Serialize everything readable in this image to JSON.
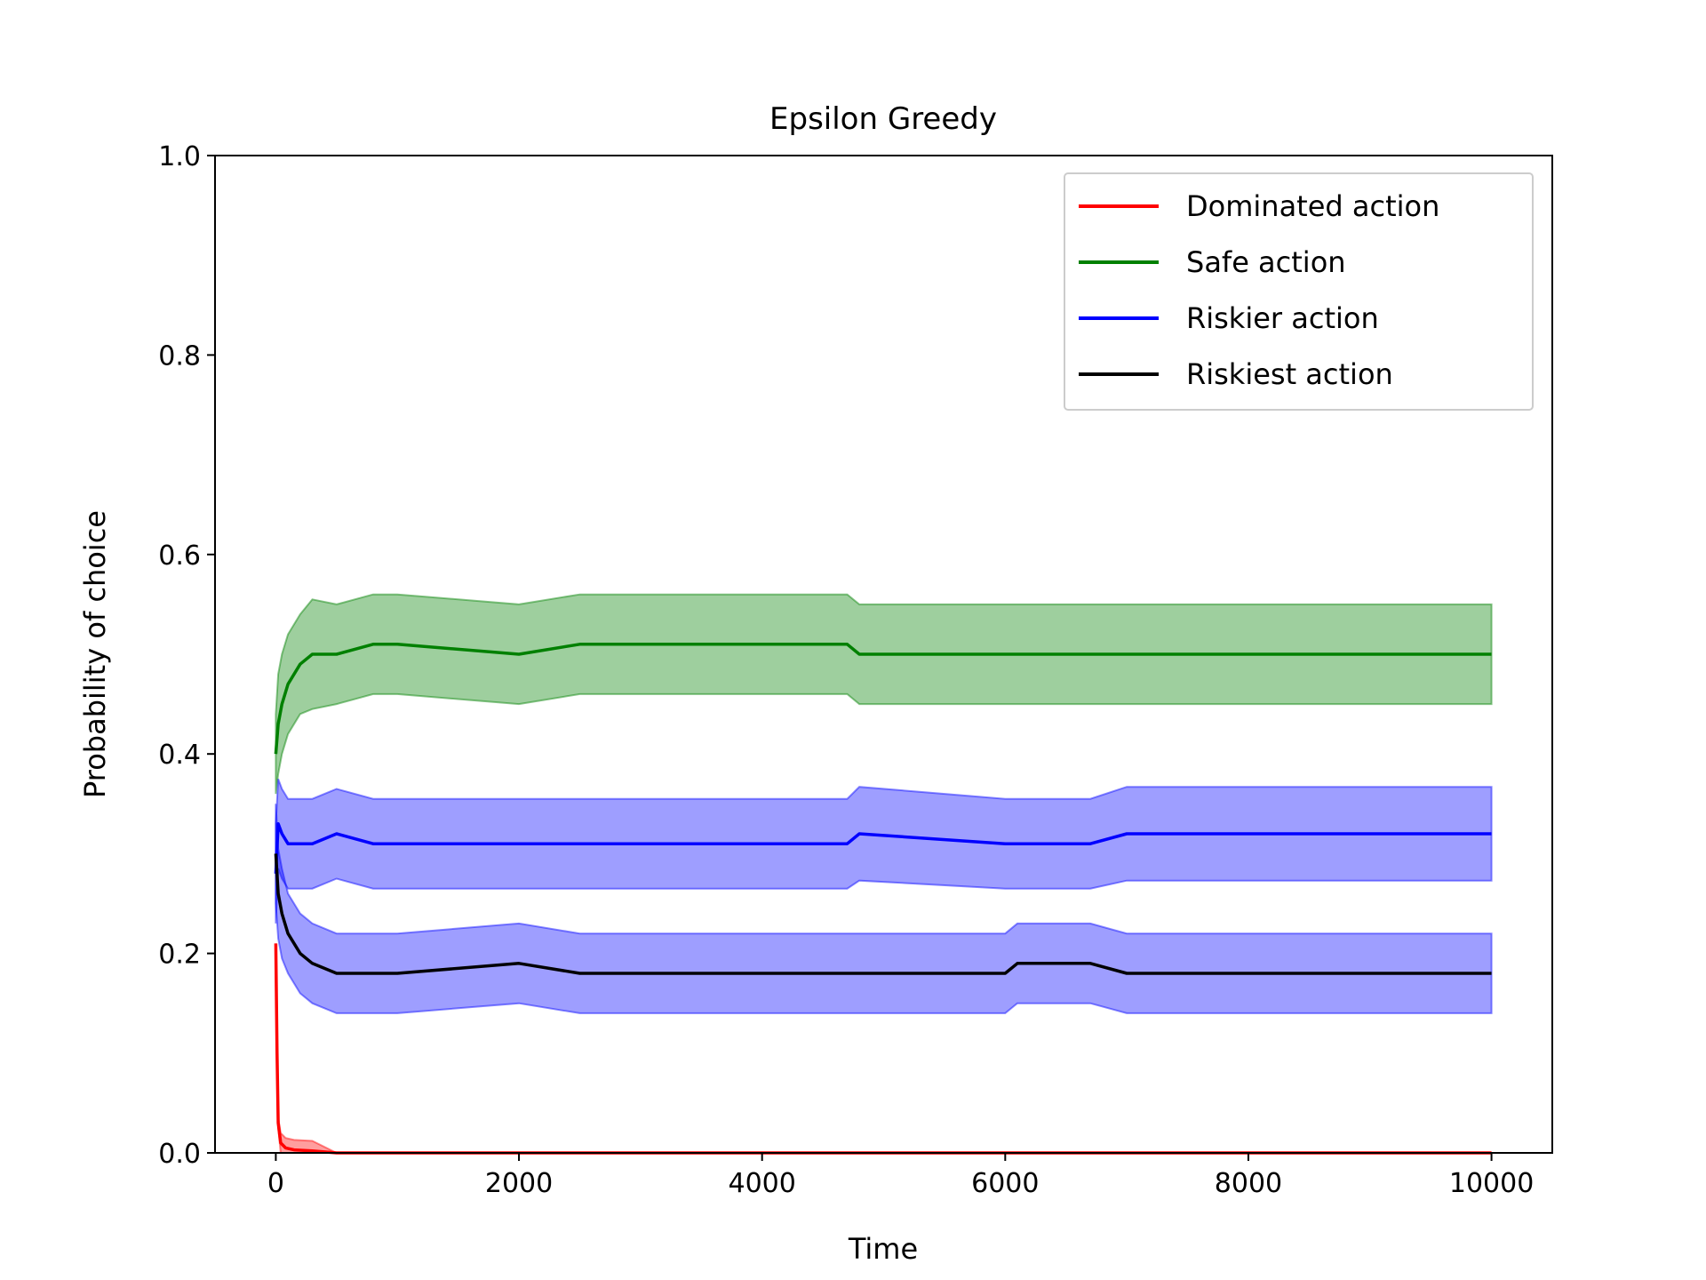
{
  "chart_data": {
    "type": "line",
    "title": "Epsilon Greedy",
    "xlabel": "Time",
    "ylabel": "Probability of choice",
    "xlim": [
      -500,
      10500
    ],
    "ylim": [
      0.0,
      1.0
    ],
    "xticks": [
      0,
      2000,
      4000,
      6000,
      8000,
      10000
    ],
    "xtick_labels": [
      "0",
      "2000",
      "4000",
      "6000",
      "8000",
      "10000"
    ],
    "yticks": [
      0.0,
      0.2,
      0.4,
      0.6,
      0.8,
      1.0
    ],
    "ytick_labels": [
      "0.0",
      "0.2",
      "0.4",
      "0.6",
      "0.8",
      "1.0"
    ],
    "grid": false,
    "legend_position": "top-right",
    "series": [
      {
        "name": "Dominated action",
        "color": "#ff0000",
        "band_color": "#ff0000",
        "x": [
          0,
          10,
          20,
          40,
          80,
          150,
          300,
          500,
          1000,
          2000,
          4000,
          6000,
          8000,
          10000
        ],
        "y": [
          0.21,
          0.1,
          0.03,
          0.01,
          0.005,
          0.003,
          0.002,
          0.0,
          0.0,
          0.0,
          0.0,
          0.0,
          0.0,
          0.0
        ],
        "band_halfwidth": [
          0.0,
          0.0,
          0.005,
          0.01,
          0.01,
          0.01,
          0.01,
          0.0,
          0.0,
          0.0,
          0.0,
          0.0,
          0.0,
          0.0
        ]
      },
      {
        "name": "Safe action",
        "color": "#008000",
        "band_color": "#008000",
        "x": [
          0,
          20,
          50,
          100,
          200,
          300,
          500,
          800,
          1000,
          2000,
          2500,
          3000,
          4000,
          4700,
          4800,
          6000,
          8000,
          10000
        ],
        "y": [
          0.4,
          0.43,
          0.45,
          0.47,
          0.49,
          0.5,
          0.5,
          0.51,
          0.51,
          0.5,
          0.51,
          0.51,
          0.51,
          0.51,
          0.5,
          0.5,
          0.5,
          0.5
        ],
        "band_halfwidth": [
          0.04,
          0.05,
          0.05,
          0.05,
          0.05,
          0.055,
          0.05,
          0.05,
          0.05,
          0.05,
          0.05,
          0.05,
          0.05,
          0.05,
          0.05,
          0.05,
          0.05,
          0.05
        ]
      },
      {
        "name": "Riskier action",
        "color": "#0000ff",
        "band_color": "#0000ff",
        "x": [
          0,
          20,
          50,
          100,
          200,
          300,
          500,
          800,
          1000,
          2000,
          3000,
          4000,
          4700,
          4800,
          6000,
          6700,
          7000,
          8000,
          10000
        ],
        "y": [
          0.28,
          0.33,
          0.32,
          0.31,
          0.31,
          0.31,
          0.32,
          0.31,
          0.31,
          0.31,
          0.31,
          0.31,
          0.31,
          0.32,
          0.31,
          0.31,
          0.32,
          0.32,
          0.32
        ],
        "band_halfwidth": [
          0.05,
          0.045,
          0.045,
          0.045,
          0.045,
          0.045,
          0.045,
          0.045,
          0.045,
          0.045,
          0.045,
          0.045,
          0.045,
          0.047,
          0.045,
          0.045,
          0.047,
          0.047,
          0.047
        ]
      },
      {
        "name": "Riskiest action",
        "color": "#000000",
        "band_color": "#0000ff",
        "x": [
          0,
          20,
          50,
          100,
          200,
          300,
          500,
          800,
          1000,
          2000,
          2500,
          3000,
          4000,
          6000,
          6100,
          6700,
          7000,
          8000,
          10000
        ],
        "y": [
          0.3,
          0.26,
          0.24,
          0.22,
          0.2,
          0.19,
          0.18,
          0.18,
          0.18,
          0.19,
          0.18,
          0.18,
          0.18,
          0.18,
          0.19,
          0.19,
          0.18,
          0.18,
          0.18
        ],
        "band_halfwidth": [
          0.05,
          0.045,
          0.045,
          0.04,
          0.04,
          0.04,
          0.04,
          0.04,
          0.04,
          0.04,
          0.04,
          0.04,
          0.04,
          0.04,
          0.04,
          0.04,
          0.04,
          0.04,
          0.04
        ]
      }
    ]
  }
}
